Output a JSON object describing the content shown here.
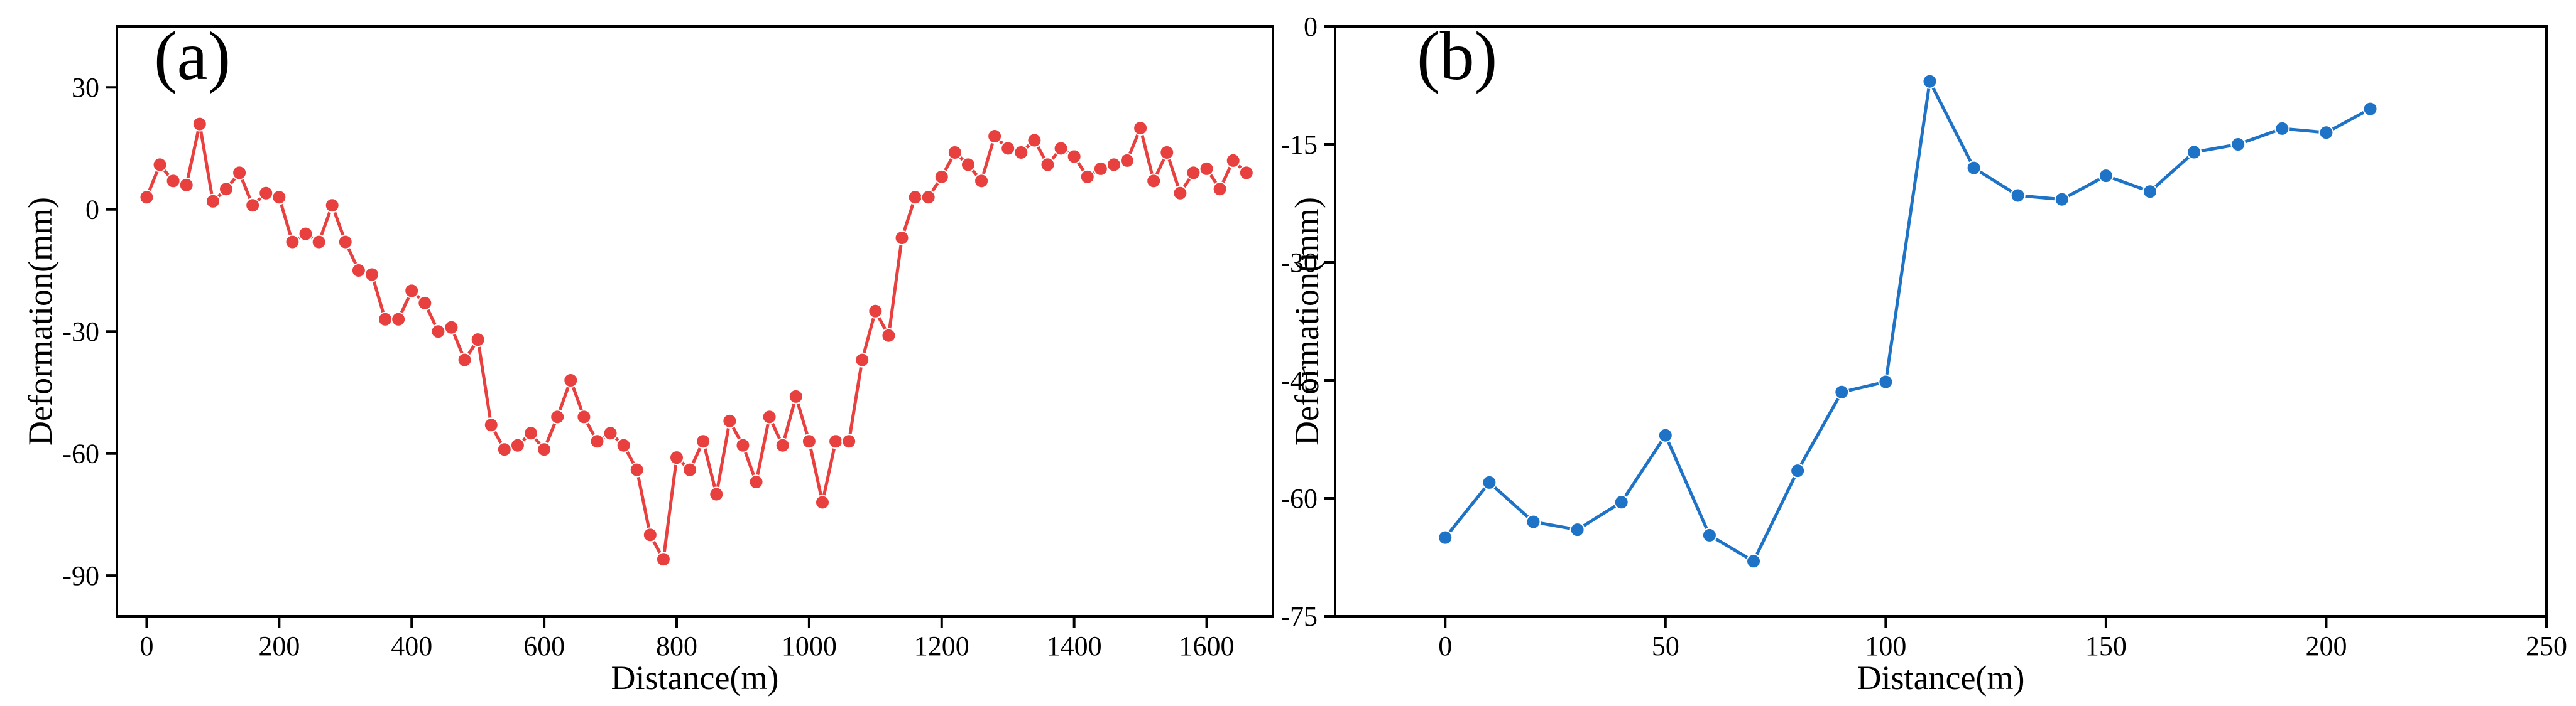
{
  "chart_data": [
    {
      "panel_label": "(a)",
      "type": "line",
      "xlabel": "Distance(m)",
      "ylabel": "Deformation(mm)",
      "xlim": [
        -45,
        1700
      ],
      "ylim": [
        -100,
        45
      ],
      "xticks": [
        0,
        200,
        400,
        600,
        800,
        1000,
        1200,
        1400,
        1600
      ],
      "yticks": [
        30,
        0,
        -30,
        -60,
        -90
      ],
      "marker": "circle",
      "color": "#e8403f",
      "grid": false,
      "series": [
        {
          "x": [
            0,
            20,
            40,
            60,
            80,
            100,
            120,
            140,
            160,
            180,
            200,
            220,
            240,
            260,
            280,
            300,
            320,
            340,
            360,
            380,
            400,
            420,
            440,
            460,
            480,
            500,
            520,
            540,
            560,
            580,
            600,
            620,
            640,
            660,
            680,
            700,
            720,
            740,
            760,
            780,
            800,
            820,
            840,
            860,
            880,
            900,
            920,
            940,
            960,
            980,
            1000,
            1020,
            1040,
            1060,
            1080,
            1100,
            1120,
            1140,
            1160,
            1180,
            1200,
            1220,
            1240,
            1260,
            1280,
            1300,
            1320,
            1340,
            1360,
            1380,
            1400,
            1420,
            1440,
            1460,
            1480,
            1500,
            1520,
            1540,
            1560,
            1580,
            1600,
            1620,
            1640,
            1660
          ],
          "y": [
            3,
            11,
            7,
            6,
            21,
            2,
            5,
            9,
            1,
            4,
            3,
            -8,
            -6,
            -8,
            1,
            -8,
            -15,
            -16,
            -27,
            -27,
            -20,
            -23,
            -30,
            -29,
            -37,
            -32,
            -53,
            -59,
            -58,
            -55,
            -59,
            -51,
            -42,
            -51,
            -57,
            -55,
            -58,
            -64,
            -80,
            -86,
            -61,
            -64,
            -57,
            -70,
            -52,
            -58,
            -67,
            -51,
            -58,
            -46,
            -57,
            -72,
            -57,
            -57,
            -37,
            -25,
            -31,
            -7,
            3,
            3,
            8,
            14,
            11,
            7,
            18,
            15,
            14,
            17,
            11,
            15,
            13,
            8,
            10,
            11,
            12,
            20,
            7,
            14,
            4,
            9,
            10,
            5,
            12,
            9
          ]
        }
      ]
    },
    {
      "panel_label": "(b)",
      "type": "line",
      "xlabel": "Distance(m)",
      "ylabel": "Deformation(mm)",
      "xlim": [
        -25,
        250
      ],
      "ylim": [
        -75,
        0
      ],
      "xticks": [
        0,
        50,
        100,
        150,
        200,
        250
      ],
      "yticks": [
        0,
        -15,
        -30,
        -45,
        -60,
        -75
      ],
      "marker": "circle",
      "color": "#1e73c6",
      "grid": false,
      "series": [
        {
          "x": [
            0,
            10,
            20,
            30,
            40,
            50,
            60,
            70,
            80,
            90,
            100,
            110,
            120,
            130,
            140,
            150,
            160,
            170,
            180,
            190,
            200,
            210
          ],
          "y": [
            -65,
            -58,
            -63,
            -64,
            -60.5,
            -52,
            -64.7,
            -68,
            -56.5,
            -46.5,
            -45.2,
            -7,
            -18,
            -21.5,
            -22,
            -19,
            -21,
            -16,
            -15,
            -13,
            -13.5,
            -10.5
          ]
        }
      ]
    }
  ]
}
